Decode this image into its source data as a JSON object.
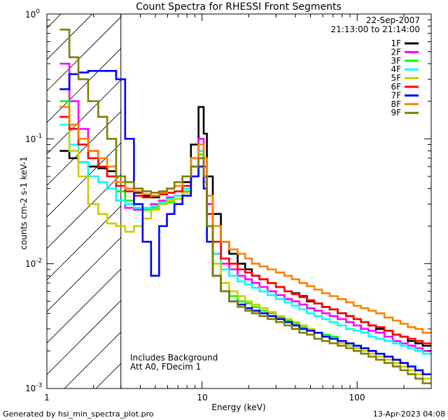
{
  "chart_data": {
    "type": "line",
    "title": "Count Spectra for RHESSI Front Segments",
    "xlabel": "Energy (keV)",
    "ylabel": "counts cm-2 s-1 keV-1",
    "xscale": "log",
    "yscale": "log",
    "xlim": [
      1,
      300
    ],
    "ylim": [
      0.001,
      1
    ],
    "x_tick_labels": [
      "1",
      "10",
      "100"
    ],
    "y_tick_labels": [
      {
        "base": "10",
        "exp": "0"
      },
      {
        "base": "10",
        "exp": "-1"
      },
      {
        "base": "10",
        "exp": "-2"
      },
      {
        "base": "10",
        "exp": "-3"
      }
    ],
    "date": "22-Sep-2007",
    "time_range": "21:13:00 to 21:14:00",
    "annotations": [
      "Includes Background",
      "Att A0, FDecim 1"
    ],
    "attenuator_region_max_keV": 3,
    "energy_keV": [
      1.3,
      1.5,
      1.7,
      2.0,
      2.3,
      2.6,
      3.0,
      3.4,
      3.9,
      4.4,
      5.0,
      5.6,
      6.3,
      7.0,
      8.0,
      9.0,
      10.0,
      10.5,
      11.0,
      12.5,
      14.0,
      16.0,
      18.0,
      20.0,
      22.0,
      25.0,
      28.0,
      32.0,
      36.0,
      40.0,
      45.0,
      50.0,
      56.0,
      63.0,
      70.0,
      80.0,
      90.0,
      100.0,
      112.0,
      125.0,
      140.0,
      160.0,
      180.0,
      200.0,
      225.0,
      250.0,
      280.0
    ],
    "series": [
      {
        "name": "1F",
        "color": "#000000",
        "values": [
          0.08,
          0.07,
          0.065,
          0.06,
          0.058,
          0.055,
          0.045,
          0.04,
          0.037,
          0.035,
          0.034,
          0.036,
          0.037,
          0.038,
          0.045,
          0.09,
          0.18,
          0.11,
          0.05,
          0.025,
          0.015,
          0.012,
          0.01,
          0.009,
          0.008,
          0.0075,
          0.007,
          0.0065,
          0.006,
          0.0058,
          0.0055,
          0.005,
          0.0048,
          0.0045,
          0.0043,
          0.004,
          0.0038,
          0.0036,
          0.0034,
          0.0032,
          0.003,
          0.0029,
          0.0027,
          0.0026,
          0.0024,
          0.0023,
          0.0022
        ]
      },
      {
        "name": "2F",
        "color": "#ff00ff",
        "values": [
          0.4,
          0.2,
          0.12,
          0.08,
          0.06,
          0.05,
          0.032,
          0.028,
          0.027,
          0.028,
          0.03,
          0.032,
          0.034,
          0.035,
          0.04,
          0.07,
          0.1,
          0.06,
          0.03,
          0.012,
          0.01,
          0.009,
          0.008,
          0.0075,
          0.007,
          0.0065,
          0.006,
          0.0056,
          0.0052,
          0.005,
          0.0047,
          0.0044,
          0.0042,
          0.004,
          0.0038,
          0.0036,
          0.0034,
          0.0032,
          0.003,
          0.0029,
          0.0028,
          0.0026,
          0.0024,
          0.0023,
          0.0022,
          0.0021,
          0.002
        ]
      },
      {
        "name": "3F",
        "color": "#00ff00",
        "values": [
          0.2,
          0.13,
          0.09,
          0.07,
          0.06,
          0.05,
          0.038,
          0.032,
          0.028,
          0.027,
          0.028,
          0.03,
          0.031,
          0.033,
          0.038,
          0.06,
          0.075,
          0.05,
          0.02,
          0.008,
          0.006,
          0.0055,
          0.005,
          0.0048,
          0.0045,
          0.0042,
          0.004,
          0.0037,
          0.0035,
          0.0033,
          0.0031,
          0.003,
          0.0028,
          0.0027,
          0.0026,
          0.0024,
          0.0023,
          0.0022,
          0.0021,
          0.002,
          0.0019,
          0.0018,
          0.0017,
          0.0016,
          0.0015,
          0.0014,
          0.0013
        ]
      },
      {
        "name": "4F",
        "color": "#00ffff",
        "values": [
          0.13,
          0.09,
          0.065,
          0.05,
          0.045,
          0.04,
          0.032,
          0.03,
          0.028,
          0.028,
          0.029,
          0.031,
          0.033,
          0.035,
          0.04,
          0.07,
          0.08,
          0.05,
          0.025,
          0.012,
          0.009,
          0.008,
          0.0072,
          0.0068,
          0.0064,
          0.006,
          0.0056,
          0.0052,
          0.0049,
          0.0046,
          0.0043,
          0.004,
          0.0038,
          0.0036,
          0.0034,
          0.0032,
          0.003,
          0.0029,
          0.0028,
          0.0026,
          0.0025,
          0.0024,
          0.0023,
          0.0022,
          0.0021,
          0.002,
          0.0019
        ]
      },
      {
        "name": "5F",
        "color": "#cccc00",
        "values": [
          0.15,
          0.08,
          0.05,
          0.03,
          0.025,
          0.021,
          0.02,
          0.018,
          0.02,
          0.023,
          0.027,
          0.03,
          0.032,
          0.033,
          0.037,
          0.05,
          0.06,
          0.045,
          0.02,
          0.01,
          0.007,
          0.006,
          0.0055,
          0.005,
          0.0047,
          0.0044,
          0.0041,
          0.0038,
          0.0036,
          0.0034,
          0.0032,
          0.003,
          0.0028,
          0.0026,
          0.0025,
          0.0023,
          0.0022,
          0.0021,
          0.002,
          0.0019,
          0.0018,
          0.0017,
          0.0016,
          0.0015,
          0.0014,
          0.0013,
          0.0012
        ]
      },
      {
        "name": "6F",
        "color": "#ff0000",
        "values": [
          0.15,
          0.12,
          0.09,
          0.07,
          0.06,
          0.05,
          0.042,
          0.038,
          0.035,
          0.034,
          0.035,
          0.036,
          0.037,
          0.038,
          0.042,
          0.06,
          0.07,
          0.05,
          0.025,
          0.015,
          0.011,
          0.01,
          0.009,
          0.0085,
          0.008,
          0.0075,
          0.007,
          0.0065,
          0.006,
          0.0057,
          0.0054,
          0.0051,
          0.0048,
          0.0045,
          0.0043,
          0.004,
          0.0038,
          0.0036,
          0.0034,
          0.0032,
          0.0031,
          0.0029,
          0.0027,
          0.0026,
          0.0025,
          0.0024,
          0.0023
        ]
      },
      {
        "name": "7F",
        "color": "#0000ff",
        "values": [
          0.25,
          0.33,
          0.34,
          0.35,
          0.35,
          0.35,
          0.3,
          0.1,
          0.03,
          0.015,
          0.008,
          0.02,
          0.025,
          0.03,
          0.035,
          0.05,
          0.06,
          0.04,
          0.015,
          0.008,
          0.006,
          0.005,
          0.0047,
          0.0044,
          0.0042,
          0.004,
          0.0038,
          0.0036,
          0.0034,
          0.0032,
          0.003,
          0.0029,
          0.0028,
          0.0026,
          0.0025,
          0.0024,
          0.0023,
          0.0022,
          0.0021,
          0.002,
          0.0019,
          0.0018,
          0.0017,
          0.0016,
          0.0015,
          0.0014,
          0.0013
        ]
      },
      {
        "name": "8F",
        "color": "#ff8000",
        "values": [
          0.18,
          0.13,
          0.1,
          0.08,
          0.07,
          0.06,
          0.045,
          0.04,
          0.038,
          0.036,
          0.035,
          0.037,
          0.04,
          0.042,
          0.05,
          0.07,
          0.09,
          0.07,
          0.035,
          0.02,
          0.015,
          0.013,
          0.012,
          0.011,
          0.01,
          0.0095,
          0.009,
          0.0085,
          0.008,
          0.0075,
          0.007,
          0.0066,
          0.0062,
          0.0058,
          0.0055,
          0.0052,
          0.0049,
          0.0046,
          0.0044,
          0.0042,
          0.004,
          0.0037,
          0.0035,
          0.0033,
          0.0031,
          0.003,
          0.0028
        ]
      },
      {
        "name": "9F",
        "color": "#808000",
        "values": [
          0.75,
          0.45,
          0.3,
          0.2,
          0.15,
          0.1,
          0.05,
          0.045,
          0.04,
          0.038,
          0.037,
          0.038,
          0.04,
          0.045,
          0.05,
          0.06,
          0.07,
          0.05,
          0.02,
          0.008,
          0.006,
          0.005,
          0.0045,
          0.0042,
          0.004,
          0.0038,
          0.0036,
          0.0034,
          0.0032,
          0.003,
          0.0028,
          0.0027,
          0.0025,
          0.0024,
          0.0023,
          0.0022,
          0.0021,
          0.002,
          0.0019,
          0.0018,
          0.0017,
          0.0016,
          0.0015,
          0.0014,
          0.0013,
          0.0012,
          0.0011
        ]
      }
    ]
  },
  "footer": {
    "generated_by": "Generated by hsi_min_spectra_plot.pro",
    "timestamp": "13-Apr-2023 04:08"
  }
}
